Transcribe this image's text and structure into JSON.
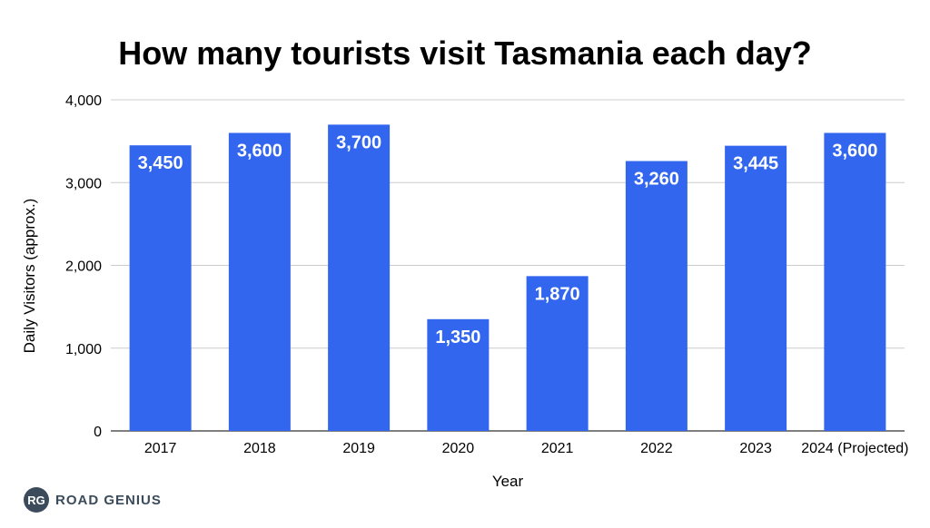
{
  "chart_data": {
    "type": "bar",
    "title": "How many tourists visit Tasmania each day?",
    "xlabel": "Year",
    "ylabel": "Daily Visitors (approx.)",
    "categories": [
      "2017",
      "2018",
      "2019",
      "2020",
      "2021",
      "2022",
      "2023",
      "2024 (Projected)"
    ],
    "values": [
      3450,
      3600,
      3700,
      1350,
      1870,
      3260,
      3445,
      3600
    ],
    "data_labels": [
      "3,450",
      "3,600",
      "3,700",
      "1,350",
      "1,870",
      "3,260",
      "3,445",
      "3,600"
    ],
    "ylim": [
      0,
      4000
    ],
    "yticks": [
      0,
      1000,
      2000,
      3000,
      4000
    ],
    "ytick_labels": [
      "0",
      "1,000",
      "2,000",
      "3,000",
      "4,000"
    ],
    "grid": true,
    "bar_color": "#3366ee"
  },
  "logo": {
    "badge": "RG",
    "text": "ROAD GENIUS"
  }
}
